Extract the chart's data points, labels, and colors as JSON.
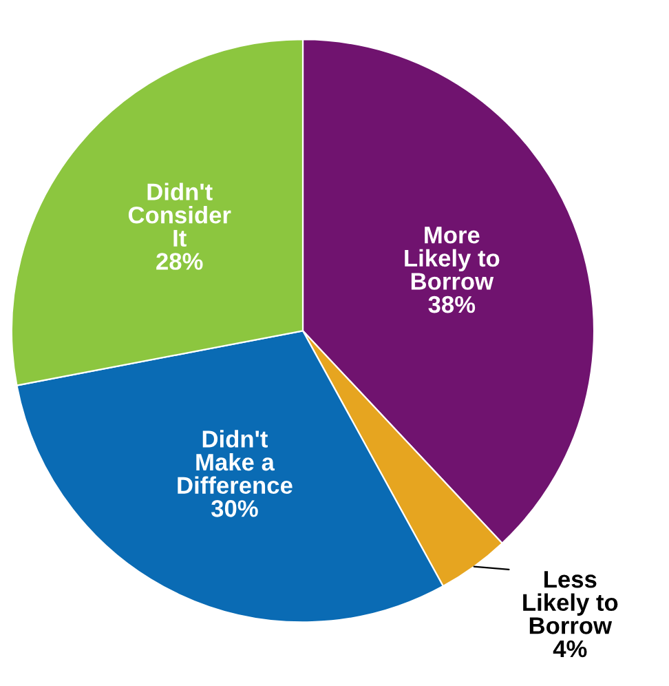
{
  "chart_data": {
    "type": "pie",
    "categories": [
      "More Likely to Borrow",
      "Less Likely to Borrow",
      "Didn't Make a Difference",
      "Didn't Consider It"
    ],
    "values": [
      38,
      4,
      30,
      28
    ],
    "value_labels": [
      "38%",
      "4%",
      "30%",
      "28%"
    ],
    "colors": [
      "#70136f",
      "#e6a520",
      "#0a6bb4",
      "#8cc63f"
    ]
  }
}
